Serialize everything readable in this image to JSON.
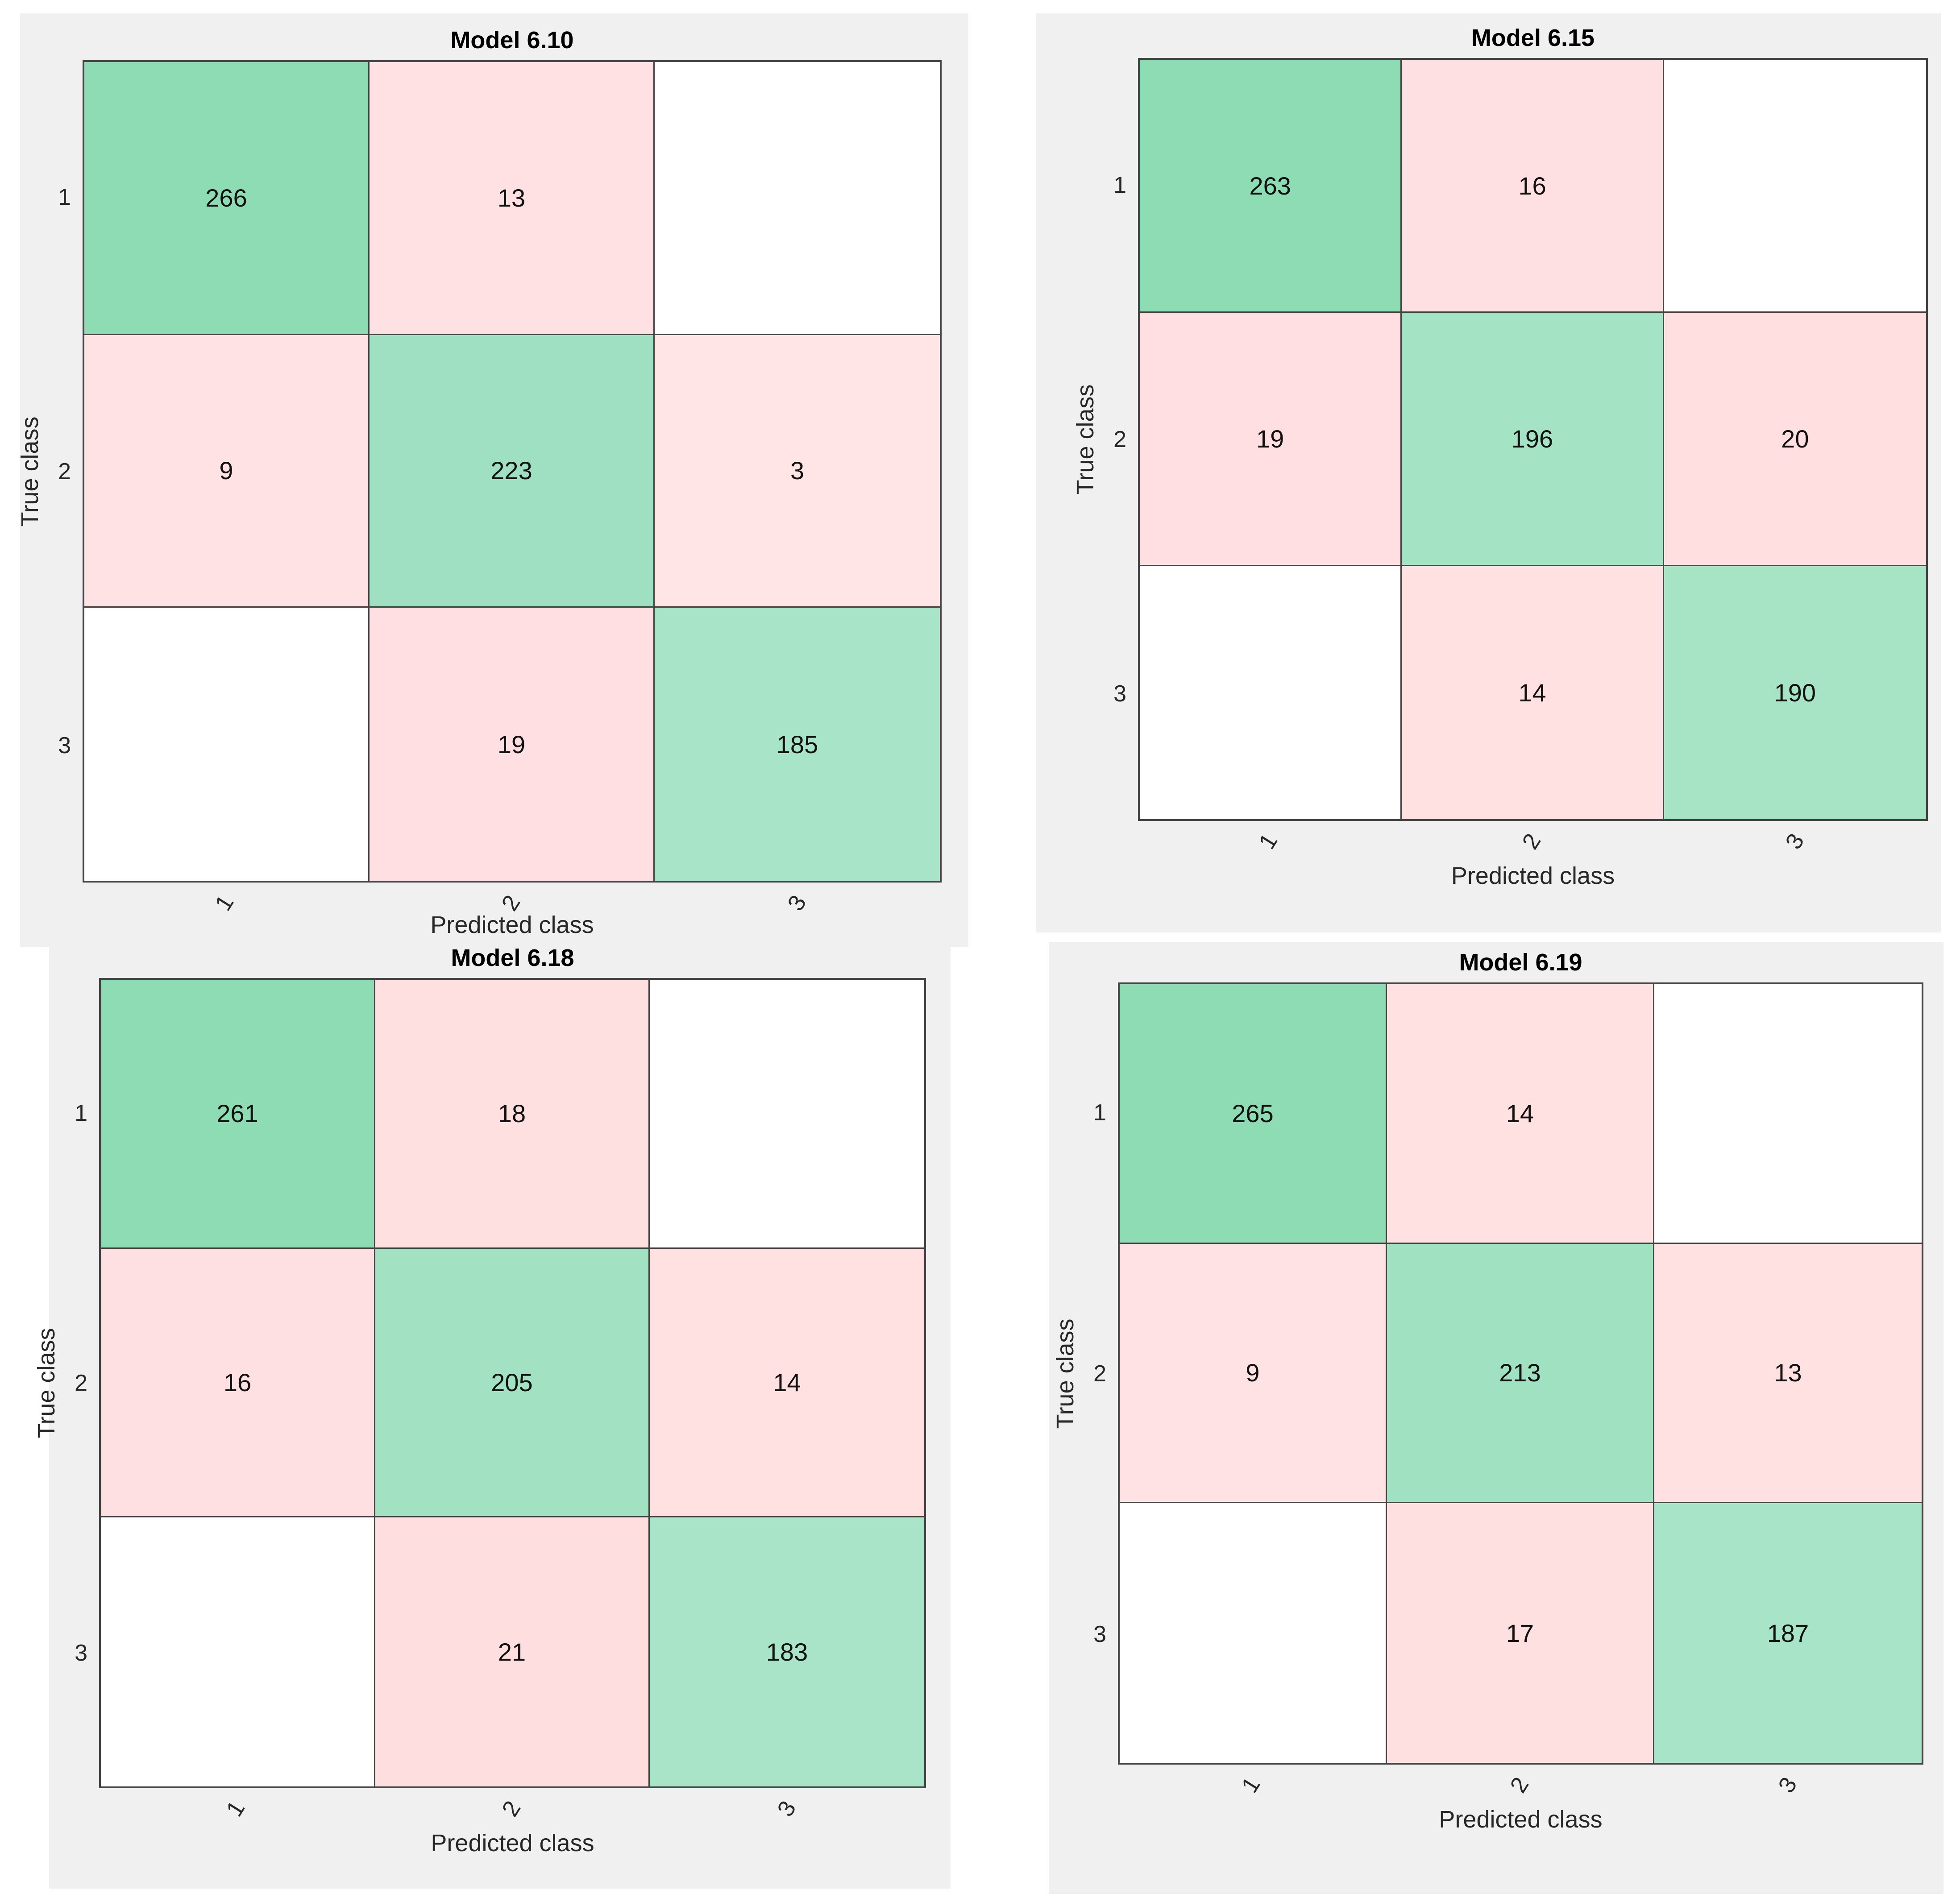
{
  "figure": {
    "background": "#ffffff",
    "panel_background": "#f0f0f0",
    "frame_color": "#444444",
    "grid_line_color": "#444444",
    "text_color": "#262626",
    "title_color": "#000000",
    "value_text_color": "#111111"
  },
  "chart_data": [
    {
      "type": "heatmap",
      "title": "Model 6.10",
      "xlabel": "Predicted class",
      "ylabel": "True class",
      "x_categories": [
        "1",
        "2",
        "3"
      ],
      "y_categories": [
        "1",
        "2",
        "3"
      ],
      "values": [
        [
          266,
          13,
          null
        ],
        [
          9,
          223,
          3
        ],
        [
          null,
          19,
          185
        ]
      ],
      "cell_colors": [
        [
          "#8EDCB4",
          "#FFE1E3",
          "#FFFFFF"
        ],
        [
          "#FFE3E4",
          "#9EE0C1",
          "#FFE5E6"
        ],
        [
          "#FFFFFF",
          "#FFDFE1",
          "#A8E4C7"
        ]
      ],
      "diagonal_color": "#8EDCB4",
      "off_diagonal_color": "#FFE1E2",
      "legend": "none",
      "grid": "on",
      "x_tick_rotation_deg": 60
    },
    {
      "type": "heatmap",
      "title": "Model 6.15",
      "xlabel": "Predicted class",
      "ylabel": "True class",
      "x_categories": [
        "1",
        "2",
        "3"
      ],
      "y_categories": [
        "1",
        "2",
        "3"
      ],
      "values": [
        [
          263,
          16,
          null
        ],
        [
          19,
          196,
          20
        ],
        [
          null,
          14,
          190
        ]
      ],
      "cell_colors": [
        [
          "#8EDCB4",
          "#FFE0E2",
          "#FFFFFF"
        ],
        [
          "#FFDFE1",
          "#A5E3C5",
          "#FFDFE0"
        ],
        [
          "#FFFFFF",
          "#FFE1E2",
          "#A7E4C6"
        ]
      ],
      "diagonal_color": "#8EDCB4",
      "off_diagonal_color": "#FFE1E2",
      "legend": "none",
      "grid": "on",
      "x_tick_rotation_deg": 60
    },
    {
      "type": "heatmap",
      "title": "Model 6.18",
      "xlabel": "Predicted class",
      "ylabel": "True class",
      "x_categories": [
        "1",
        "2",
        "3"
      ],
      "y_categories": [
        "1",
        "2",
        "3"
      ],
      "values": [
        [
          261,
          18,
          null
        ],
        [
          16,
          205,
          14
        ],
        [
          null,
          21,
          183
        ]
      ],
      "cell_colors": [
        [
          "#8EDCB4",
          "#FFE0E1",
          "#FFFFFF"
        ],
        [
          "#FFE0E2",
          "#A2E2C3",
          "#FFE1E2"
        ],
        [
          "#FFFFFF",
          "#FFDEE0",
          "#A9E4C8"
        ]
      ],
      "diagonal_color": "#8EDCB4",
      "off_diagonal_color": "#FFE1E2",
      "legend": "none",
      "grid": "on",
      "x_tick_rotation_deg": 60
    },
    {
      "type": "heatmap",
      "title": "Model 6.19",
      "xlabel": "Predicted class",
      "ylabel": "True class",
      "x_categories": [
        "1",
        "2",
        "3"
      ],
      "y_categories": [
        "1",
        "2",
        "3"
      ],
      "values": [
        [
          265,
          14,
          null
        ],
        [
          9,
          213,
          13
        ],
        [
          null,
          17,
          187
        ]
      ],
      "cell_colors": [
        [
          "#8EDCB4",
          "#FFE1E2",
          "#FFFFFF"
        ],
        [
          "#FFE3E4",
          "#A0E1C2",
          "#FFE1E2"
        ],
        [
          "#FFFFFF",
          "#FFE0E1",
          "#A8E4C7"
        ]
      ],
      "diagonal_color": "#8EDCB4",
      "off_diagonal_color": "#FFE1E2",
      "legend": "none",
      "grid": "on",
      "x_tick_rotation_deg": 60
    }
  ]
}
